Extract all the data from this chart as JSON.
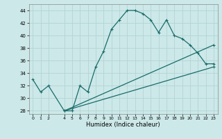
{
  "title": "",
  "xlabel": "Humidex (Indice chaleur)",
  "ylabel": "",
  "xlim": [
    -0.5,
    23.5
  ],
  "ylim": [
    27.5,
    45
  ],
  "yticks": [
    28,
    30,
    32,
    34,
    36,
    38,
    40,
    42,
    44
  ],
  "xticks": [
    0,
    1,
    2,
    4,
    5,
    6,
    7,
    8,
    9,
    10,
    11,
    12,
    13,
    14,
    15,
    16,
    17,
    18,
    19,
    20,
    21,
    22,
    23
  ],
  "bg_color": "#cce8e8",
  "grid_color": "#b0d0d0",
  "line_color": "#1a6b6b",
  "series": [
    {
      "x": [
        0,
        1,
        2,
        4,
        5,
        6,
        7,
        8,
        9,
        10,
        11,
        12,
        13,
        14,
        15,
        16,
        17,
        18,
        19,
        20,
        21,
        22,
        23
      ],
      "y": [
        33,
        31,
        32,
        28,
        28,
        32,
        31,
        35,
        37.5,
        41,
        42.5,
        44,
        44,
        43.5,
        42.5,
        40.5,
        42.5,
        40,
        39.5,
        38.5,
        37.2,
        35.5,
        35.5
      ]
    },
    {
      "x": [
        4,
        23
      ],
      "y": [
        28,
        38.5
      ]
    },
    {
      "x": [
        4,
        23
      ],
      "y": [
        28,
        35
      ]
    }
  ],
  "marker": "+",
  "markersize": 3,
  "linewidth": 0.9,
  "tick_labelsize": 5,
  "xlabel_fontsize": 6
}
